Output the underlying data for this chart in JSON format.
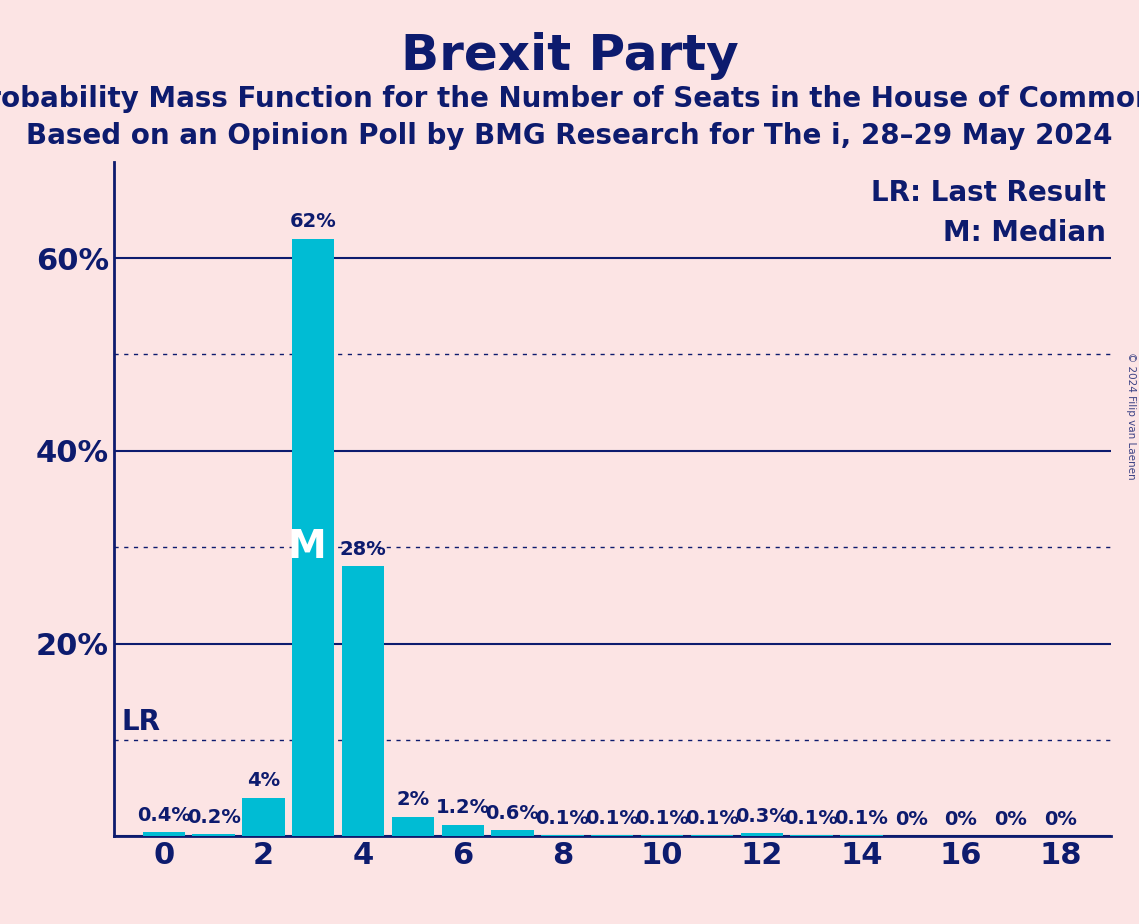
{
  "title": "Brexit Party",
  "subtitle1": "Probability Mass Function for the Number of Seats in the House of Commons",
  "subtitle2": "Based on an Opinion Poll by BMG Research for The i, 28–29 May 2024",
  "background_color": "#fce4e4",
  "bar_color": "#00bcd4",
  "axis_color": "#0d1b6e",
  "text_color": "#0d1b6e",
  "seats": [
    0,
    1,
    2,
    3,
    4,
    5,
    6,
    7,
    8,
    9,
    10,
    11,
    12,
    13,
    14,
    15,
    16,
    17,
    18
  ],
  "probabilities": [
    0.4,
    0.2,
    4.0,
    62.0,
    28.0,
    2.0,
    1.2,
    0.6,
    0.1,
    0.1,
    0.1,
    0.1,
    0.3,
    0.1,
    0.1,
    0.0,
    0.0,
    0.0,
    0.0
  ],
  "labels": [
    "0.4%",
    "0.2%",
    "4%",
    "62%",
    "28%",
    "2%",
    "1.2%",
    "0.6%",
    "0.1%",
    "0.1%",
    "0.1%",
    "0.1%",
    "0.3%",
    "0.1%",
    "0.1%",
    "0%",
    "0%",
    "0%",
    "0%"
  ],
  "median_seat": 3,
  "lr_seat": 0,
  "yticks": [
    0,
    20,
    40,
    60
  ],
  "ytick_labels": [
    "",
    "20%",
    "40%",
    "60%"
  ],
  "solid_yticks": [
    0,
    20,
    40,
    60
  ],
  "dotted_yticks": [
    10,
    30,
    50
  ],
  "xticks": [
    0,
    2,
    4,
    6,
    8,
    10,
    12,
    14,
    16,
    18
  ],
  "ylim": [
    0,
    70
  ],
  "legend_lr": "LR: Last Result",
  "legend_m": "M: Median",
  "copyright": "© 2024 Filip van Laenen",
  "title_fontsize": 36,
  "subtitle_fontsize": 20,
  "axis_label_fontsize": 22,
  "bar_label_fontsize": 14,
  "legend_fontsize": 20,
  "lr_label_fontsize": 20,
  "lr_line_y": 10
}
